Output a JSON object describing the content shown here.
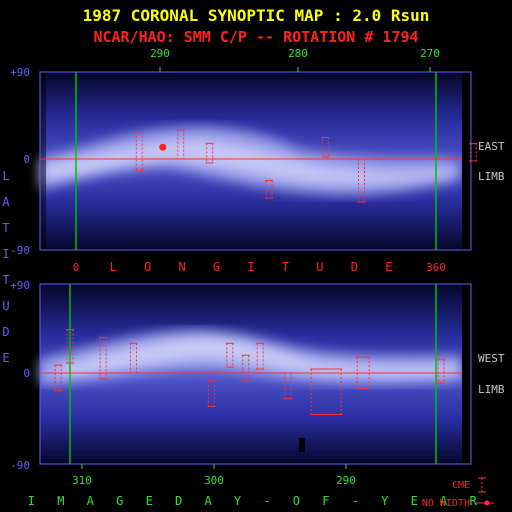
{
  "header": {
    "title": "1987 CORONAL SYNOPTIC MAP : 2.0 Rsun",
    "subtitle": "NCAR/HAO: SMM C/P -- ROTATION # 1794"
  },
  "axes": {
    "latitude_label": "LATITUDE",
    "longitude_label": "LONGITUDE",
    "day_of_year_label": "IMAGE DAY-OF-YEAR",
    "east_label": "EAST",
    "west_label": "WEST",
    "limb_label": "LIMB",
    "lat_ticks": [
      "+90",
      "0",
      "-90"
    ]
  },
  "legend": {
    "cme_label": "CME",
    "no_width_label": "NO WIDTH"
  },
  "colors": {
    "title": "#ffff00",
    "subtitle": "#ff2020",
    "tick_green": "#30e030",
    "axis_blue": "#5f5fff",
    "cme": "#ff3030",
    "meridian": "#00c000"
  },
  "chart_data": [
    {
      "type": "heatmap",
      "panel": "east",
      "top_axis_ticks": [
        290,
        280,
        270
      ],
      "bottom_axis_ticks": [
        0,
        360
      ],
      "ylim": [
        -90,
        90
      ],
      "limb": "EAST",
      "cmes": [
        {
          "day": 291.5,
          "lat_top": 28,
          "lat_bottom": -12
        },
        {
          "day": 288.5,
          "lat_top": 30,
          "lat_bottom": 0
        },
        {
          "day": 286.4,
          "lat_top": 16,
          "lat_bottom": -4
        },
        {
          "day": 282.1,
          "lat_top": -22,
          "lat_bottom": -40
        },
        {
          "day": 278.0,
          "lat_top": 22,
          "lat_bottom": 2
        },
        {
          "day": 275.4,
          "lat_top": 0,
          "lat_bottom": -44
        },
        {
          "day": 267.3,
          "lat_top": 16,
          "lat_bottom": -2
        }
      ],
      "no_width_cmes": [
        {
          "day": 289.8,
          "lat": 12
        }
      ]
    },
    {
      "type": "heatmap",
      "panel": "west",
      "bottom_axis_ticks": [
        310,
        300,
        290
      ],
      "ylim": [
        -90,
        90
      ],
      "limb": "WEST",
      "cmes": [
        {
          "day": 311.8,
          "lat": 8,
          "lat_bottom": -18
        },
        {
          "day": 310.9,
          "lat": 44,
          "lat_bottom": 10
        },
        {
          "day": 308.4,
          "lat": 36,
          "lat_bottom": -6
        },
        {
          "day": 306.1,
          "lat": 30,
          "lat_bottom": 0
        },
        {
          "day": 300.2,
          "lat": -8,
          "lat_bottom": -34
        },
        {
          "day": 298.8,
          "lat": 30,
          "lat_bottom": 6
        },
        {
          "day": 297.6,
          "lat": 18,
          "lat_bottom": -8
        },
        {
          "day": 296.5,
          "lat": 30,
          "lat_bottom": 4
        },
        {
          "day": 294.4,
          "lat": 0,
          "lat_bottom": -26
        },
        {
          "day": 291.5,
          "lat": 4,
          "lat_bottom": -42
        },
        {
          "day": 288.7,
          "lat": 16,
          "lat_bottom": -16
        },
        {
          "day": 282.8,
          "lat": 14,
          "lat_bottom": -10
        }
      ]
    }
  ]
}
